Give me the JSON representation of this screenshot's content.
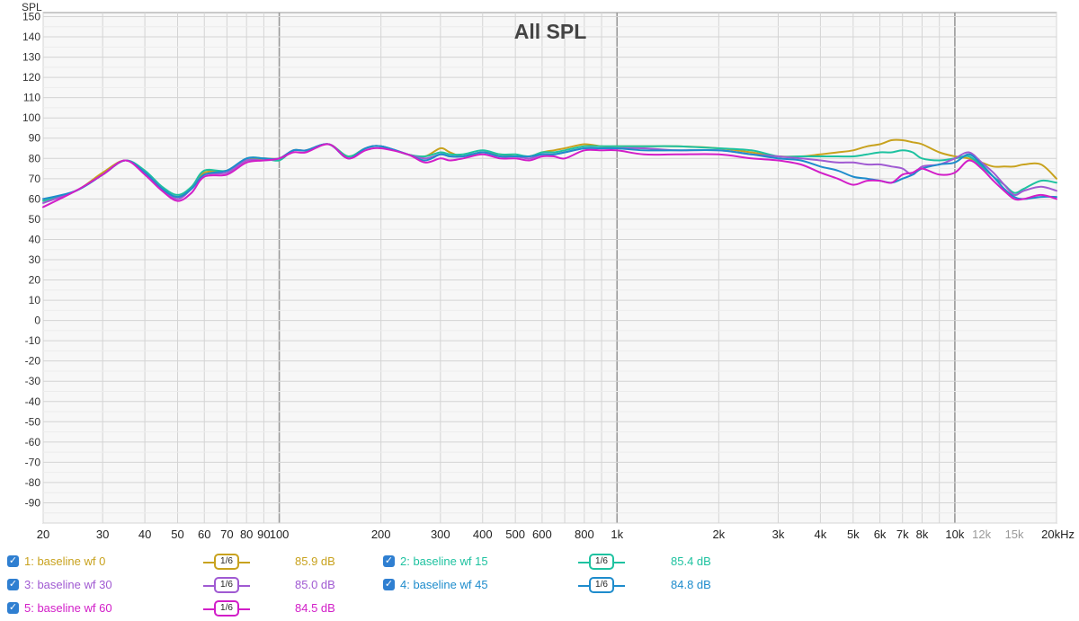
{
  "chart_data": {
    "type": "line",
    "title": "All SPL",
    "ylabel": "SPL",
    "xlabel": "",
    "x_unit": "Hz",
    "x_scale": "log",
    "xlim": [
      20,
      20000
    ],
    "ylim": [
      -100,
      152
    ],
    "y_ticks": [
      150,
      140,
      130,
      120,
      110,
      100,
      90,
      80,
      70,
      60,
      50,
      40,
      30,
      20,
      10,
      0,
      -10,
      -20,
      -30,
      -40,
      -50,
      -60,
      -70,
      -80,
      -90
    ],
    "x_ticks": [
      {
        "v": 20,
        "label": "20"
      },
      {
        "v": 30,
        "label": "30"
      },
      {
        "v": 40,
        "label": "40"
      },
      {
        "v": 50,
        "label": "50"
      },
      {
        "v": 60,
        "label": "60"
      },
      {
        "v": 70,
        "label": "70"
      },
      {
        "v": 80,
        "label": "80"
      },
      {
        "v": 90,
        "label": "90"
      },
      {
        "v": 100,
        "label": "100"
      },
      {
        "v": 200,
        "label": "200"
      },
      {
        "v": 300,
        "label": "300"
      },
      {
        "v": 400,
        "label": "400"
      },
      {
        "v": 500,
        "label": "500"
      },
      {
        "v": 600,
        "label": "600"
      },
      {
        "v": 800,
        "label": "800"
      },
      {
        "v": 1000,
        "label": "1k"
      },
      {
        "v": 2000,
        "label": "2k"
      },
      {
        "v": 3000,
        "label": "3k"
      },
      {
        "v": 4000,
        "label": "4k"
      },
      {
        "v": 5000,
        "label": "5k"
      },
      {
        "v": 6000,
        "label": "6k"
      },
      {
        "v": 7000,
        "label": "7k"
      },
      {
        "v": 8000,
        "label": "8k"
      },
      {
        "v": 10000,
        "label": "10k"
      },
      {
        "v": 12000,
        "label": "12k"
      },
      {
        "v": 15000,
        "label": "15k"
      },
      {
        "v": 20000,
        "label": "20kHz"
      }
    ],
    "grid": true,
    "x": [
      20,
      25,
      30,
      35,
      40,
      45,
      50,
      55,
      60,
      70,
      80,
      90,
      100,
      110,
      120,
      140,
      160,
      180,
      200,
      240,
      270,
      300,
      320,
      350,
      400,
      450,
      500,
      550,
      600,
      650,
      700,
      800,
      900,
      1000,
      1200,
      1500,
      2000,
      2500,
      3000,
      3500,
      4000,
      4500,
      5000,
      5500,
      6000,
      6500,
      7000,
      7500,
      8000,
      9000,
      10000,
      11000,
      12000,
      13000,
      14000,
      15000,
      16000,
      18000,
      20000
    ],
    "series": [
      {
        "name": "1: baseline wf 0",
        "color": "#c8a21e",
        "values": [
          59,
          64,
          73,
          79,
          73,
          65,
          61,
          66,
          73,
          74,
          79,
          80,
          80,
          84,
          84,
          87,
          81,
          85,
          86,
          82,
          81,
          85,
          83,
          81,
          83,
          82,
          81,
          81,
          83,
          84,
          85,
          87,
          86,
          86,
          86,
          86,
          85,
          83,
          81,
          81,
          82,
          83,
          84,
          86,
          87,
          89,
          89,
          88,
          87,
          83,
          81,
          80,
          78,
          76,
          76,
          76,
          77,
          77,
          70
        ]
      },
      {
        "name": "2: baseline wf 15",
        "color": "#1ec2a0",
        "values": [
          59,
          64,
          72,
          79,
          74,
          66,
          62,
          66,
          74,
          74,
          80,
          80,
          79,
          84,
          84,
          87,
          81,
          85,
          86,
          82,
          81,
          83,
          82,
          82,
          84,
          82,
          82,
          81,
          83,
          83,
          84,
          86,
          86,
          86,
          86,
          86,
          85,
          84,
          81,
          81,
          81,
          81,
          81,
          82,
          83,
          83,
          84,
          83,
          80,
          79,
          80,
          81,
          76,
          71,
          67,
          63,
          65,
          69,
          68
        ]
      },
      {
        "name": "3: baseline wf 30",
        "color": "#a05ad2",
        "values": [
          58,
          64,
          72,
          79,
          73,
          65,
          60,
          65,
          72,
          73,
          79,
          79,
          80,
          84,
          84,
          87,
          80,
          85,
          86,
          82,
          80,
          82,
          81,
          81,
          83,
          81,
          81,
          80,
          82,
          82,
          83,
          85,
          85,
          85,
          85,
          84,
          84,
          82,
          81,
          80,
          79,
          78,
          78,
          77,
          77,
          76,
          75,
          72,
          76,
          77,
          80,
          83,
          78,
          73,
          67,
          62,
          64,
          66,
          64
        ]
      },
      {
        "name": "4: baseline wf 45",
        "color": "#1e8ccc",
        "values": [
          60,
          64,
          72,
          79,
          73,
          65,
          61,
          65,
          72,
          74,
          80,
          80,
          80,
          84,
          84,
          87,
          80,
          85,
          86,
          82,
          79,
          82,
          81,
          81,
          83,
          81,
          81,
          81,
          82,
          82,
          83,
          85,
          85,
          85,
          84,
          84,
          84,
          82,
          80,
          79,
          76,
          74,
          71,
          70,
          69,
          68,
          70,
          72,
          75,
          77,
          78,
          82,
          77,
          71,
          65,
          61,
          60,
          61,
          61
        ]
      },
      {
        "name": "5: baseline wf 60",
        "color": "#d21ec8",
        "values": [
          56,
          64,
          72,
          79,
          72,
          64,
          59,
          63,
          71,
          72,
          78,
          79,
          80,
          83,
          83,
          87,
          80,
          84,
          85,
          82,
          78,
          80,
          79,
          80,
          82,
          80,
          80,
          79,
          81,
          81,
          80,
          84,
          84,
          84,
          82,
          82,
          82,
          80,
          79,
          77,
          73,
          70,
          67,
          69,
          69,
          68,
          72,
          73,
          75,
          72,
          73,
          79,
          75,
          69,
          64,
          60,
          60,
          62,
          60
        ]
      }
    ]
  },
  "legend": {
    "items": [
      {
        "label": "1: baseline wf 0",
        "smoothing": "1/6",
        "value": "85.9 dB",
        "color": "#c8a21e"
      },
      {
        "label": "2: baseline wf 15",
        "smoothing": "1/6",
        "value": "85.4 dB",
        "color": "#1ec2a0"
      },
      {
        "label": "3: baseline wf 30",
        "smoothing": "1/6",
        "value": "85.0 dB",
        "color": "#a05ad2"
      },
      {
        "label": "4: baseline wf 45",
        "smoothing": "1/6",
        "value": "84.8 dB",
        "color": "#1e8ccc"
      },
      {
        "label": "5: baseline wf 60",
        "smoothing": "1/6",
        "value": "84.5 dB",
        "color": "#d21ec8"
      }
    ]
  }
}
